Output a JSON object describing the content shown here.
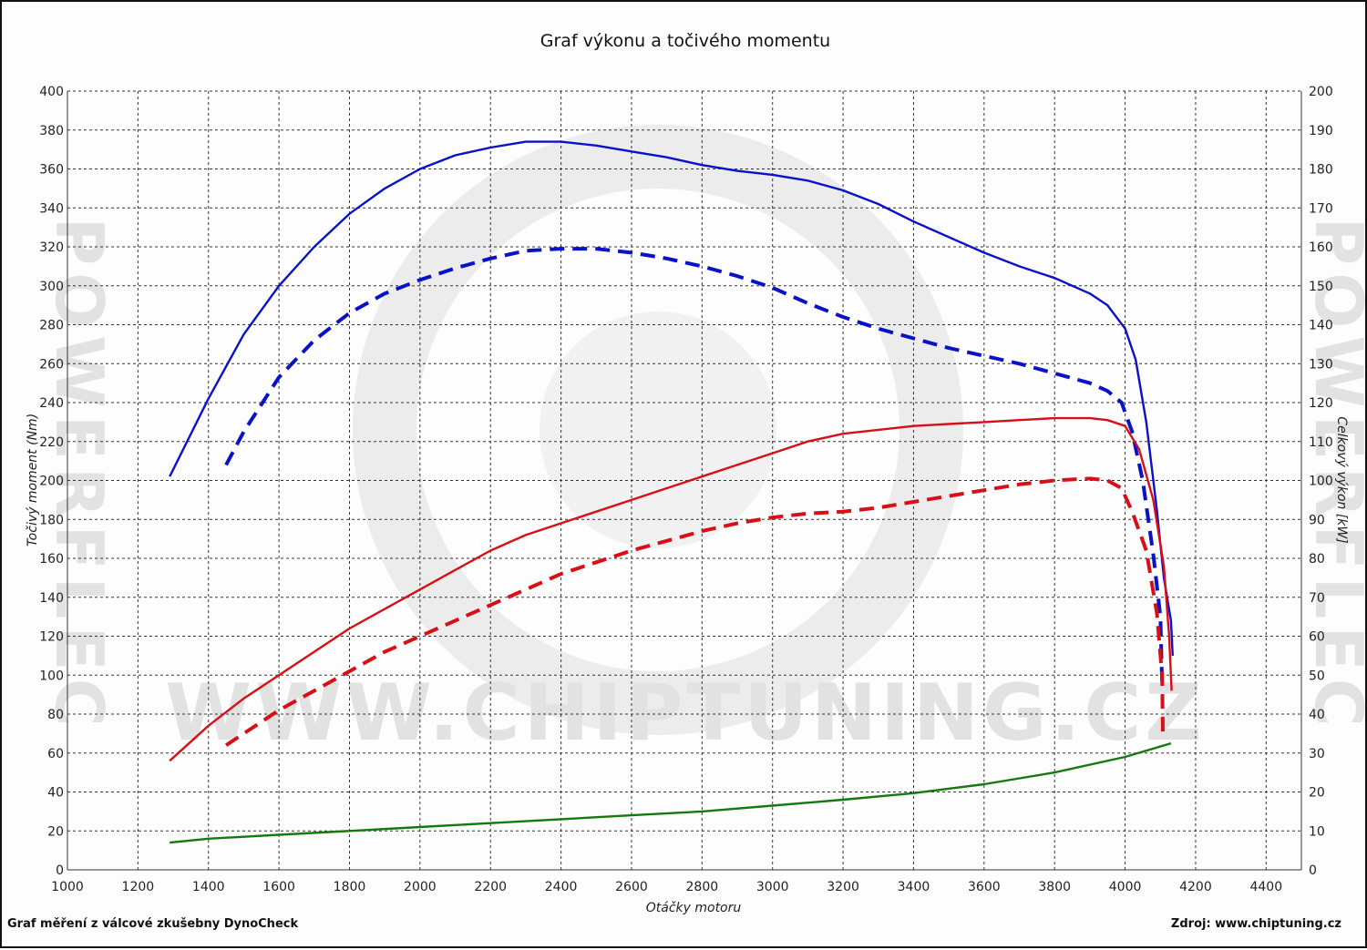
{
  "title": "Graf výkonu a točivého momentu",
  "footer": {
    "left": "Graf měření z válcové zkušebny DynoCheck",
    "right": "Zdroj: www.chiptuning.cz"
  },
  "watermark": {
    "center": "WWW.CHIPTUNING.CZ",
    "side": "POWERFLEC"
  },
  "chart_data": {
    "type": "line",
    "title": "Graf výkonu a točivého momentu",
    "xlabel": "Otáčky motoru",
    "ylabel_left": "Točivý moment (Nm)",
    "ylabel_right": "Celkový výkon [kW]",
    "xlim": [
      1000,
      4500
    ],
    "ylim_left": [
      0,
      400
    ],
    "ylim_right": [
      0,
      200
    ],
    "x_ticks": [
      1000,
      1200,
      1400,
      1600,
      1800,
      2000,
      2200,
      2400,
      2600,
      2800,
      3000,
      3200,
      3400,
      3600,
      3800,
      4000,
      4200,
      4400
    ],
    "y_ticks_left": [
      0,
      20,
      40,
      60,
      80,
      100,
      120,
      140,
      160,
      180,
      200,
      220,
      240,
      260,
      280,
      300,
      320,
      340,
      360,
      380,
      400
    ],
    "y_ticks_right": [
      0,
      10,
      20,
      30,
      40,
      50,
      60,
      70,
      80,
      90,
      100,
      110,
      120,
      130,
      140,
      150,
      160,
      170,
      180,
      190,
      200
    ],
    "grid": true,
    "legend": "none",
    "series": [
      {
        "axis": "left",
        "color": "#0a12c8",
        "style": "solid",
        "points": [
          [
            1290,
            202
          ],
          [
            1400,
            242
          ],
          [
            1500,
            275
          ],
          [
            1600,
            300
          ],
          [
            1700,
            320
          ],
          [
            1800,
            337
          ],
          [
            1900,
            350
          ],
          [
            2000,
            360
          ],
          [
            2100,
            367
          ],
          [
            2200,
            371
          ],
          [
            2300,
            374
          ],
          [
            2400,
            374
          ],
          [
            2500,
            372
          ],
          [
            2600,
            369
          ],
          [
            2700,
            366
          ],
          [
            2800,
            362
          ],
          [
            2900,
            359
          ],
          [
            3000,
            357
          ],
          [
            3100,
            354
          ],
          [
            3200,
            349
          ],
          [
            3300,
            342
          ],
          [
            3400,
            333
          ],
          [
            3500,
            325
          ],
          [
            3600,
            317
          ],
          [
            3700,
            310
          ],
          [
            3800,
            304
          ],
          [
            3900,
            296
          ],
          [
            3950,
            290
          ],
          [
            4000,
            278
          ],
          [
            4030,
            262
          ],
          [
            4060,
            230
          ],
          [
            4090,
            185
          ],
          [
            4110,
            150
          ],
          [
            4130,
            128
          ],
          [
            4135,
            110
          ]
        ]
      },
      {
        "axis": "left",
        "color": "#0a12c8",
        "style": "dashed",
        "points": [
          [
            1450,
            208
          ],
          [
            1500,
            225
          ],
          [
            1600,
            253
          ],
          [
            1700,
            272
          ],
          [
            1800,
            286
          ],
          [
            1900,
            296
          ],
          [
            2000,
            303
          ],
          [
            2100,
            309
          ],
          [
            2200,
            314
          ],
          [
            2300,
            318
          ],
          [
            2400,
            319
          ],
          [
            2500,
            319
          ],
          [
            2600,
            317
          ],
          [
            2700,
            314
          ],
          [
            2800,
            310
          ],
          [
            2900,
            305
          ],
          [
            3000,
            299
          ],
          [
            3100,
            291
          ],
          [
            3200,
            284
          ],
          [
            3300,
            278
          ],
          [
            3400,
            273
          ],
          [
            3500,
            268
          ],
          [
            3600,
            264
          ],
          [
            3700,
            260
          ],
          [
            3800,
            255
          ],
          [
            3900,
            250
          ],
          [
            3950,
            246
          ],
          [
            3990,
            240
          ],
          [
            4020,
            225
          ],
          [
            4050,
            200
          ],
          [
            4080,
            162
          ],
          [
            4100,
            130
          ],
          [
            4105,
            95
          ]
        ]
      },
      {
        "axis": "right",
        "color": "#d80f16",
        "style": "solid",
        "points": [
          [
            1290,
            28
          ],
          [
            1400,
            37
          ],
          [
            1500,
            44
          ],
          [
            1600,
            50
          ],
          [
            1700,
            56
          ],
          [
            1800,
            62
          ],
          [
            1900,
            67
          ],
          [
            2000,
            72
          ],
          [
            2100,
            77
          ],
          [
            2200,
            82
          ],
          [
            2300,
            86
          ],
          [
            2400,
            89
          ],
          [
            2500,
            92
          ],
          [
            2600,
            95
          ],
          [
            2700,
            98
          ],
          [
            2800,
            101
          ],
          [
            2900,
            104
          ],
          [
            3000,
            107
          ],
          [
            3100,
            110
          ],
          [
            3200,
            112
          ],
          [
            3300,
            113
          ],
          [
            3400,
            114
          ],
          [
            3500,
            114.5
          ],
          [
            3600,
            115
          ],
          [
            3700,
            115.5
          ],
          [
            3800,
            116
          ],
          [
            3900,
            116
          ],
          [
            3950,
            115.5
          ],
          [
            4000,
            114
          ],
          [
            4040,
            108
          ],
          [
            4080,
            95
          ],
          [
            4110,
            78
          ],
          [
            4125,
            60
          ],
          [
            4132,
            46
          ]
        ]
      },
      {
        "axis": "right",
        "color": "#d80f16",
        "style": "dashed",
        "points": [
          [
            1450,
            32
          ],
          [
            1500,
            35
          ],
          [
            1600,
            41
          ],
          [
            1700,
            46
          ],
          [
            1800,
            51
          ],
          [
            1900,
            56
          ],
          [
            2000,
            60
          ],
          [
            2100,
            64
          ],
          [
            2200,
            68
          ],
          [
            2300,
            72
          ],
          [
            2400,
            76
          ],
          [
            2500,
            79
          ],
          [
            2600,
            82
          ],
          [
            2700,
            84.5
          ],
          [
            2800,
            87
          ],
          [
            2900,
            89
          ],
          [
            3000,
            90.5
          ],
          [
            3100,
            91.5
          ],
          [
            3200,
            92
          ],
          [
            3300,
            93
          ],
          [
            3400,
            94.5
          ],
          [
            3500,
            96
          ],
          [
            3600,
            97.5
          ],
          [
            3700,
            99
          ],
          [
            3800,
            100
          ],
          [
            3900,
            100.5
          ],
          [
            3950,
            100
          ],
          [
            3990,
            98
          ],
          [
            4020,
            92
          ],
          [
            4060,
            82
          ],
          [
            4090,
            66
          ],
          [
            4105,
            50
          ],
          [
            4107,
            35
          ]
        ]
      },
      {
        "axis": "right",
        "color": "#147a10",
        "style": "solid",
        "points": [
          [
            1290,
            7
          ],
          [
            1400,
            8
          ],
          [
            1600,
            9
          ],
          [
            1800,
            10
          ],
          [
            2000,
            11
          ],
          [
            2200,
            12
          ],
          [
            2400,
            13
          ],
          [
            2600,
            14
          ],
          [
            2800,
            15
          ],
          [
            3000,
            16.5
          ],
          [
            3200,
            18
          ],
          [
            3400,
            19.7
          ],
          [
            3600,
            22
          ],
          [
            3800,
            25
          ],
          [
            4000,
            29
          ],
          [
            4130,
            32.5
          ]
        ]
      }
    ]
  }
}
